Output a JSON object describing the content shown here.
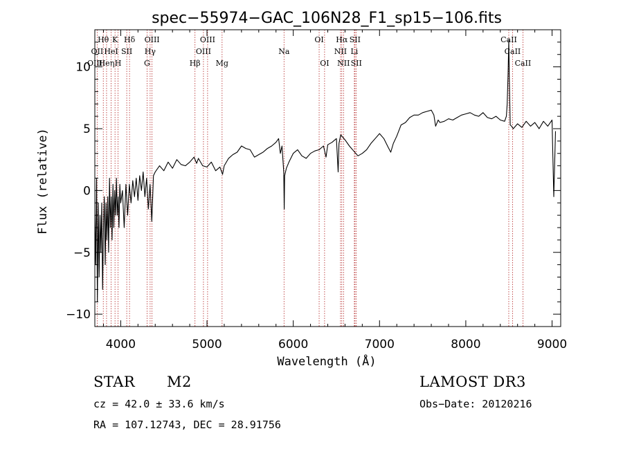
{
  "chart_data": {
    "type": "line",
    "title": "spec−55974−GAC_106N28_F1_sp15−106.fits",
    "xlabel": "Wavelength (Å)",
    "ylabel": "Flux (relative)",
    "xlim": [
      3700,
      9100
    ],
    "ylim": [
      -11,
      13
    ],
    "xticks": [
      4000,
      5000,
      6000,
      7000,
      8000,
      9000
    ],
    "yticks": [
      -10,
      -5,
      0,
      5,
      10
    ],
    "series": [
      {
        "name": "spectrum",
        "points": [
          [
            3700,
            -2
          ],
          [
            3710,
            -6
          ],
          [
            3720,
            1
          ],
          [
            3730,
            -9
          ],
          [
            3740,
            -1
          ],
          [
            3750,
            -7
          ],
          [
            3760,
            -2
          ],
          [
            3770,
            -5
          ],
          [
            3780,
            -1
          ],
          [
            3790,
            -8
          ],
          [
            3800,
            -3
          ],
          [
            3810,
            -0.5
          ],
          [
            3820,
            -6
          ],
          [
            3830,
            -1
          ],
          [
            3840,
            -4
          ],
          [
            3850,
            -0.5
          ],
          [
            3860,
            -5
          ],
          [
            3870,
            1
          ],
          [
            3880,
            -3
          ],
          [
            3890,
            -0.5
          ],
          [
            3900,
            -4
          ],
          [
            3910,
            0.5
          ],
          [
            3920,
            -3
          ],
          [
            3930,
            0
          ],
          [
            3940,
            -2
          ],
          [
            3950,
            1
          ],
          [
            3960,
            -2
          ],
          [
            3970,
            -0.5
          ],
          [
            3980,
            -3
          ],
          [
            3990,
            0.5
          ],
          [
            4000,
            -1
          ],
          [
            4020,
            0
          ],
          [
            4040,
            -3
          ],
          [
            4060,
            0.5
          ],
          [
            4080,
            -2
          ],
          [
            4100,
            0.5
          ],
          [
            4120,
            -1
          ],
          [
            4140,
            0.8
          ],
          [
            4160,
            -0.5
          ],
          [
            4180,
            1
          ],
          [
            4200,
            -0.8
          ],
          [
            4220,
            1.2
          ],
          [
            4240,
            0
          ],
          [
            4260,
            1.5
          ],
          [
            4280,
            -0.5
          ],
          [
            4300,
            1
          ],
          [
            4320,
            -1.5
          ],
          [
            4340,
            0.5
          ],
          [
            4360,
            -2.5
          ],
          [
            4380,
            1.2
          ],
          [
            4400,
            1.5
          ],
          [
            4450,
            2
          ],
          [
            4500,
            1.6
          ],
          [
            4550,
            2.3
          ],
          [
            4600,
            1.8
          ],
          [
            4650,
            2.5
          ],
          [
            4700,
            2.1
          ],
          [
            4750,
            2
          ],
          [
            4800,
            2.3
          ],
          [
            4850,
            2.7
          ],
          [
            4880,
            2.2
          ],
          [
            4900,
            2.6
          ],
          [
            4950,
            2
          ],
          [
            5000,
            1.9
          ],
          [
            5050,
            2.3
          ],
          [
            5100,
            1.6
          ],
          [
            5150,
            1.9
          ],
          [
            5180,
            1.3
          ],
          [
            5200,
            2
          ],
          [
            5250,
            2.6
          ],
          [
            5300,
            2.9
          ],
          [
            5350,
            3.1
          ],
          [
            5400,
            3.6
          ],
          [
            5450,
            3.4
          ],
          [
            5500,
            3.3
          ],
          [
            5550,
            2.7
          ],
          [
            5600,
            2.9
          ],
          [
            5650,
            3.1
          ],
          [
            5700,
            3.4
          ],
          [
            5750,
            3.6
          ],
          [
            5800,
            3.9
          ],
          [
            5830,
            4.2
          ],
          [
            5850,
            3
          ],
          [
            5870,
            3.6
          ],
          [
            5890,
            1.5
          ],
          [
            5895,
            -1.5
          ],
          [
            5900,
            1.2
          ],
          [
            5920,
            1.8
          ],
          [
            5950,
            2.3
          ],
          [
            6000,
            3
          ],
          [
            6050,
            3.3
          ],
          [
            6100,
            2.8
          ],
          [
            6150,
            2.6
          ],
          [
            6200,
            3
          ],
          [
            6250,
            3.2
          ],
          [
            6300,
            3.3
          ],
          [
            6350,
            3.6
          ],
          [
            6380,
            2.7
          ],
          [
            6400,
            3.7
          ],
          [
            6450,
            3.9
          ],
          [
            6500,
            4.2
          ],
          [
            6520,
            1.5
          ],
          [
            6530,
            3.8
          ],
          [
            6550,
            4.5
          ],
          [
            6600,
            4.1
          ],
          [
            6650,
            3.6
          ],
          [
            6700,
            3.2
          ],
          [
            6750,
            2.8
          ],
          [
            6800,
            3
          ],
          [
            6850,
            3.3
          ],
          [
            6900,
            3.8
          ],
          [
            6950,
            4.2
          ],
          [
            7000,
            4.6
          ],
          [
            7050,
            4.2
          ],
          [
            7100,
            3.5
          ],
          [
            7130,
            3.1
          ],
          [
            7160,
            3.8
          ],
          [
            7200,
            4.4
          ],
          [
            7250,
            5.3
          ],
          [
            7300,
            5.5
          ],
          [
            7350,
            5.9
          ],
          [
            7400,
            6.1
          ],
          [
            7450,
            6.1
          ],
          [
            7500,
            6.3
          ],
          [
            7550,
            6.4
          ],
          [
            7600,
            6.5
          ],
          [
            7630,
            6.1
          ],
          [
            7650,
            5.2
          ],
          [
            7680,
            5.7
          ],
          [
            7700,
            5.5
          ],
          [
            7750,
            5.6
          ],
          [
            7800,
            5.8
          ],
          [
            7850,
            5.7
          ],
          [
            7900,
            5.9
          ],
          [
            7950,
            6.1
          ],
          [
            8000,
            6.2
          ],
          [
            8050,
            6.3
          ],
          [
            8100,
            6.1
          ],
          [
            8150,
            6
          ],
          [
            8200,
            6.3
          ],
          [
            8250,
            5.9
          ],
          [
            8300,
            5.8
          ],
          [
            8350,
            6
          ],
          [
            8400,
            5.7
          ],
          [
            8450,
            5.6
          ],
          [
            8470,
            6
          ],
          [
            8480,
            7
          ],
          [
            8490,
            9.5
          ],
          [
            8498,
            12.2
          ],
          [
            8505,
            9
          ],
          [
            8515,
            5.3
          ],
          [
            8530,
            5.2
          ],
          [
            8550,
            5
          ],
          [
            8600,
            5.4
          ],
          [
            8650,
            5.1
          ],
          [
            8700,
            5.6
          ],
          [
            8750,
            5.2
          ],
          [
            8800,
            5.5
          ],
          [
            8850,
            5
          ],
          [
            8900,
            5.6
          ],
          [
            8950,
            5.2
          ],
          [
            9000,
            5.7
          ],
          [
            9020,
            -0.5
          ],
          [
            9040,
            4.8
          ]
        ]
      }
    ],
    "spectral_lines": [
      {
        "label": "Hθ",
        "wavelength": 3798,
        "row": 1
      },
      {
        "label": "OII",
        "wavelength": 3727,
        "row": 2
      },
      {
        "label": "OIII",
        "wavelength": 3700,
        "row": 3
      },
      {
        "label": "Heη",
        "wavelength": 3836,
        "row": 3
      },
      {
        "label": "K",
        "wavelength": 3934,
        "row": 1
      },
      {
        "label": "HeI",
        "wavelength": 3889,
        "row": 2
      },
      {
        "label": "SII",
        "wavelength": 4070,
        "row": 2
      },
      {
        "label": "H",
        "wavelength": 3969,
        "row": 3
      },
      {
        "label": "Hδ",
        "wavelength": 4102,
        "row": 1
      },
      {
        "label": "OIII",
        "wavelength": 4363,
        "row": 1
      },
      {
        "label": "Hγ",
        "wavelength": 4341,
        "row": 2
      },
      {
        "label": "G",
        "wavelength": 4305,
        "row": 3
      },
      {
        "label": "OIII",
        "wavelength": 5007,
        "row": 1
      },
      {
        "label": "OIII",
        "wavelength": 4959,
        "row": 2
      },
      {
        "label": "Hβ",
        "wavelength": 4861,
        "row": 3
      },
      {
        "label": "Mg",
        "wavelength": 5175,
        "row": 3
      },
      {
        "label": "Na",
        "wavelength": 5893,
        "row": 2
      },
      {
        "label": "OI",
        "wavelength": 6300,
        "row": 1
      },
      {
        "label": "OI",
        "wavelength": 6363,
        "row": 3
      },
      {
        "label": "Hα",
        "wavelength": 6563,
        "row": 1
      },
      {
        "label": "SII",
        "wavelength": 6716,
        "row": 1
      },
      {
        "label": "NII",
        "wavelength": 6548,
        "row": 2
      },
      {
        "label": "Li",
        "wavelength": 6708,
        "row": 2
      },
      {
        "label": "NII",
        "wavelength": 6583,
        "row": 3
      },
      {
        "label": "SII",
        "wavelength": 6731,
        "row": 3
      },
      {
        "label": "CaII",
        "wavelength": 8498,
        "row": 1
      },
      {
        "label": "CaII",
        "wavelength": 8542,
        "row": 2
      },
      {
        "label": "CaII",
        "wavelength": 8662,
        "row": 3
      }
    ]
  },
  "info": {
    "object_class": "STAR",
    "subclass": "M2",
    "survey": "LAMOST DR3",
    "redshift": "cz = 42.0 ± 33.6 km/s",
    "obs_date": "Obs−Date: 20120216",
    "coords": "RA = 107.12743, DEC =  28.91756"
  },
  "colors": {
    "spectrum": "#000000",
    "line_marker": "#b22222",
    "axes": "#000000"
  }
}
